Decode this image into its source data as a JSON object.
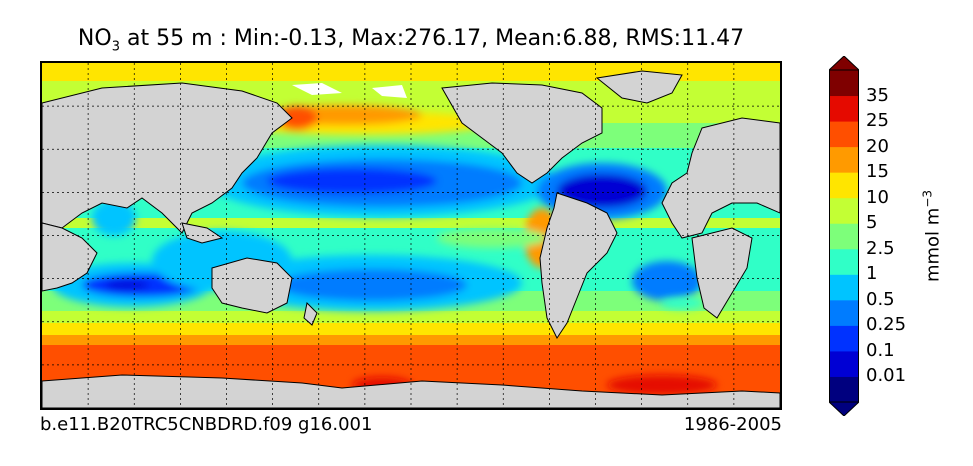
{
  "title": {
    "variable": "NO",
    "subscript": "3",
    "rest": " at 55 m : Min:-0.13, Max:276.17, Mean:6.88, RMS:11.47"
  },
  "footer": {
    "left": "b.e11.B20TRC5CNBDRD.f09 g16.001",
    "right": "1986-2005"
  },
  "colorbar": {
    "unit_base": "mmol m",
    "unit_exponent": "−3",
    "levels": [
      "0.01",
      "0.1",
      "0.25",
      "0.5",
      "1",
      "2.5",
      "5",
      "10",
      "15",
      "20",
      "25",
      "35"
    ],
    "colors": [
      "#00007f",
      "#0000d4",
      "#0032ff",
      "#007cff",
      "#00c4ff",
      "#30ffc7",
      "#7dff7a",
      "#c3ff34",
      "#ffe500",
      "#ff9a00",
      "#ff4f00",
      "#e50a00",
      "#7f0000"
    ],
    "extend": "both"
  },
  "map": {
    "land_color": "#d3d3d3",
    "grid": true,
    "gridline_style": "dashed"
  }
}
